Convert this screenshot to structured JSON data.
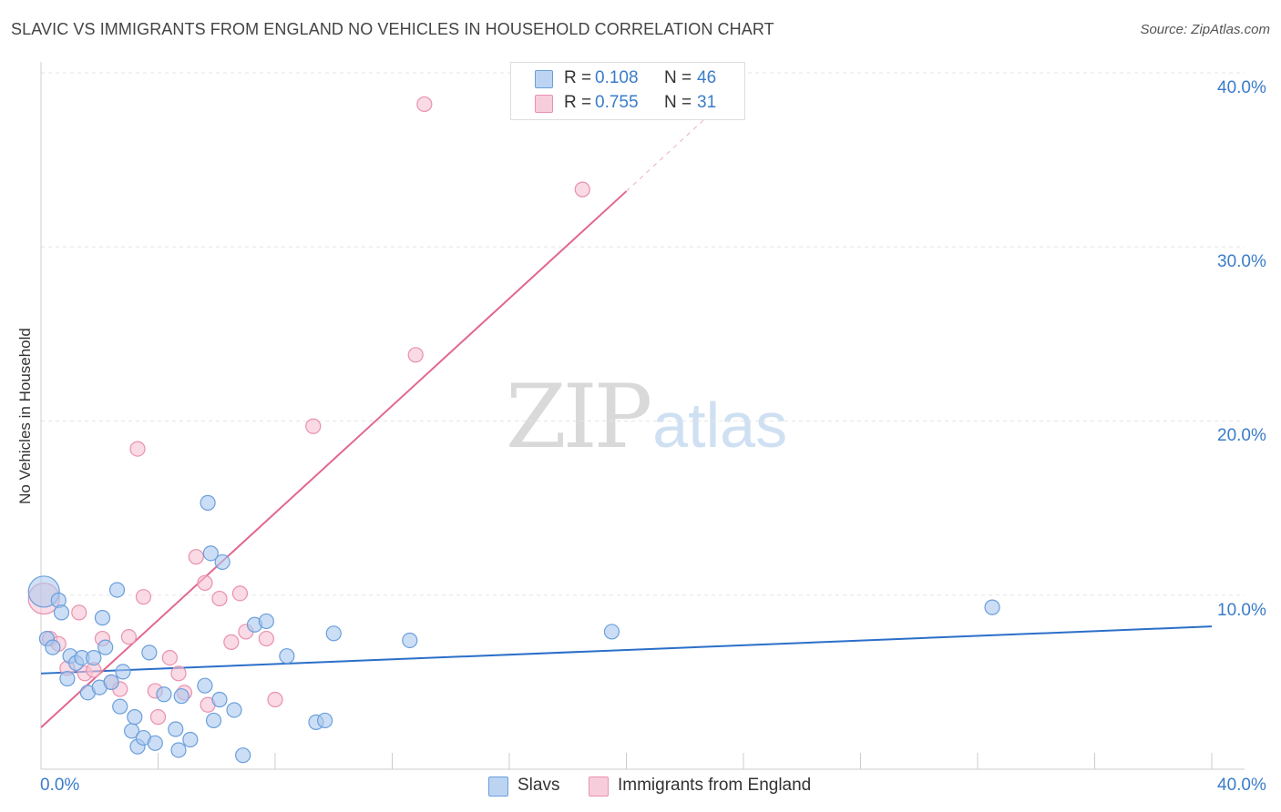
{
  "header": {
    "title": "SLAVIC VS IMMIGRANTS FROM ENGLAND NO VEHICLES IN HOUSEHOLD CORRELATION CHART",
    "source": "Source: ZipAtlas.com"
  },
  "watermark": {
    "zip": "ZIP",
    "atlas": "atlas"
  },
  "legend": {
    "rows": [
      {
        "r_label": "R =",
        "r_value": "0.108",
        "n_label": "N =",
        "n_value": "46"
      },
      {
        "r_label": "R =",
        "r_value": "0.755",
        "n_label": "N =",
        "n_value": "31"
      }
    ]
  },
  "colors": {
    "slavs_fill": "#aac8ee",
    "slavs_stroke": "#6a9fdc",
    "slavs_line": "#2b6fc9",
    "eng_fill": "#f6c1d2",
    "eng_stroke": "#e991ae",
    "eng_line": "#e2678f",
    "grid": "#e5e5e5",
    "axis": "#cccccc",
    "tick_text": "#3a7cc9"
  },
  "chart_data": {
    "type": "scatter",
    "title": "SLAVIC VS IMMIGRANTS FROM ENGLAND NO VEHICLES IN HOUSEHOLD CORRELATION CHART",
    "xlabel": "",
    "ylabel": "No Vehicles in Household",
    "xlim": [
      0,
      40
    ],
    "ylim": [
      0,
      40
    ],
    "x_tick_labels": [
      "0.0%",
      "40.0%"
    ],
    "y_ticks": [
      10,
      20,
      30,
      40
    ],
    "y_tick_labels": [
      "10.0%",
      "20.0%",
      "30.0%",
      "40.0%"
    ],
    "series": [
      {
        "name": "Slavs",
        "r": 0.108,
        "n": 46,
        "trend": {
          "x": [
            0,
            40
          ],
          "y": [
            5.5,
            8.2
          ]
        },
        "points": [
          {
            "x": 0.1,
            "y": 10.2,
            "big": true
          },
          {
            "x": 0.2,
            "y": 7.5
          },
          {
            "x": 0.4,
            "y": 7.0
          },
          {
            "x": 0.6,
            "y": 9.7
          },
          {
            "x": 0.7,
            "y": 9.0
          },
          {
            "x": 0.9,
            "y": 5.2
          },
          {
            "x": 1.0,
            "y": 6.5
          },
          {
            "x": 1.2,
            "y": 6.1
          },
          {
            "x": 1.4,
            "y": 6.4
          },
          {
            "x": 1.6,
            "y": 4.4
          },
          {
            "x": 1.8,
            "y": 6.4
          },
          {
            "x": 2.0,
            "y": 4.7
          },
          {
            "x": 2.1,
            "y": 8.7
          },
          {
            "x": 2.2,
            "y": 7.0
          },
          {
            "x": 2.4,
            "y": 5.0
          },
          {
            "x": 2.6,
            "y": 10.3
          },
          {
            "x": 2.7,
            "y": 3.6
          },
          {
            "x": 2.8,
            "y": 5.6
          },
          {
            "x": 3.1,
            "y": 2.2
          },
          {
            "x": 3.2,
            "y": 3.0
          },
          {
            "x": 3.3,
            "y": 1.3
          },
          {
            "x": 3.5,
            "y": 1.8
          },
          {
            "x": 3.7,
            "y": 6.7
          },
          {
            "x": 3.9,
            "y": 1.5
          },
          {
            "x": 4.2,
            "y": 4.3
          },
          {
            "x": 4.6,
            "y": 2.3
          },
          {
            "x": 4.7,
            "y": 1.1
          },
          {
            "x": 4.8,
            "y": 4.2
          },
          {
            "x": 5.1,
            "y": 1.7
          },
          {
            "x": 5.6,
            "y": 4.8
          },
          {
            "x": 5.7,
            "y": 15.3
          },
          {
            "x": 5.8,
            "y": 12.4
          },
          {
            "x": 5.9,
            "y": 2.8
          },
          {
            "x": 6.1,
            "y": 4.0
          },
          {
            "x": 6.2,
            "y": 11.9
          },
          {
            "x": 6.6,
            "y": 3.4
          },
          {
            "x": 6.9,
            "y": 0.8
          },
          {
            "x": 7.3,
            "y": 8.3
          },
          {
            "x": 7.7,
            "y": 8.5
          },
          {
            "x": 8.4,
            "y": 6.5
          },
          {
            "x": 9.4,
            "y": 2.7
          },
          {
            "x": 9.7,
            "y": 2.8
          },
          {
            "x": 10.0,
            "y": 7.8
          },
          {
            "x": 12.6,
            "y": 7.4
          },
          {
            "x": 19.5,
            "y": 7.9
          },
          {
            "x": 32.5,
            "y": 9.3
          }
        ]
      },
      {
        "name": "Immigrants from England",
        "r": 0.755,
        "n": 31,
        "trend": {
          "x": [
            0,
            20
          ],
          "y": [
            2.4,
            33.2
          ]
        },
        "trend_dashed": {
          "x": [
            20,
            24
          ],
          "y": [
            33.2,
            39.4
          ]
        },
        "points": [
          {
            "x": 0.1,
            "y": 9.8,
            "big": true
          },
          {
            "x": 0.3,
            "y": 7.5
          },
          {
            "x": 0.6,
            "y": 7.2
          },
          {
            "x": 0.9,
            "y": 5.8
          },
          {
            "x": 1.3,
            "y": 9.0
          },
          {
            "x": 1.5,
            "y": 5.5
          },
          {
            "x": 1.8,
            "y": 5.7
          },
          {
            "x": 2.1,
            "y": 7.5
          },
          {
            "x": 2.4,
            "y": 5.0
          },
          {
            "x": 2.7,
            "y": 4.6
          },
          {
            "x": 3.0,
            "y": 7.6
          },
          {
            "x": 3.3,
            "y": 18.4
          },
          {
            "x": 3.5,
            "y": 9.9
          },
          {
            "x": 3.9,
            "y": 4.5
          },
          {
            "x": 4.0,
            "y": 3.0
          },
          {
            "x": 4.4,
            "y": 6.4
          },
          {
            "x": 4.7,
            "y": 5.5
          },
          {
            "x": 4.9,
            "y": 4.4
          },
          {
            "x": 5.3,
            "y": 12.2
          },
          {
            "x": 5.6,
            "y": 10.7
          },
          {
            "x": 5.7,
            "y": 3.7
          },
          {
            "x": 6.1,
            "y": 9.8
          },
          {
            "x": 6.5,
            "y": 7.3
          },
          {
            "x": 6.8,
            "y": 10.1
          },
          {
            "x": 7.0,
            "y": 7.9
          },
          {
            "x": 7.7,
            "y": 7.5
          },
          {
            "x": 8.0,
            "y": 4.0
          },
          {
            "x": 9.3,
            "y": 19.7
          },
          {
            "x": 12.8,
            "y": 23.8
          },
          {
            "x": 13.1,
            "y": 38.2
          },
          {
            "x": 18.5,
            "y": 33.3
          }
        ]
      }
    ],
    "legend": [
      "Slavs",
      "Immigrants from England"
    ]
  },
  "bottom_legend": [
    "Slavs",
    "Immigrants from England"
  ]
}
